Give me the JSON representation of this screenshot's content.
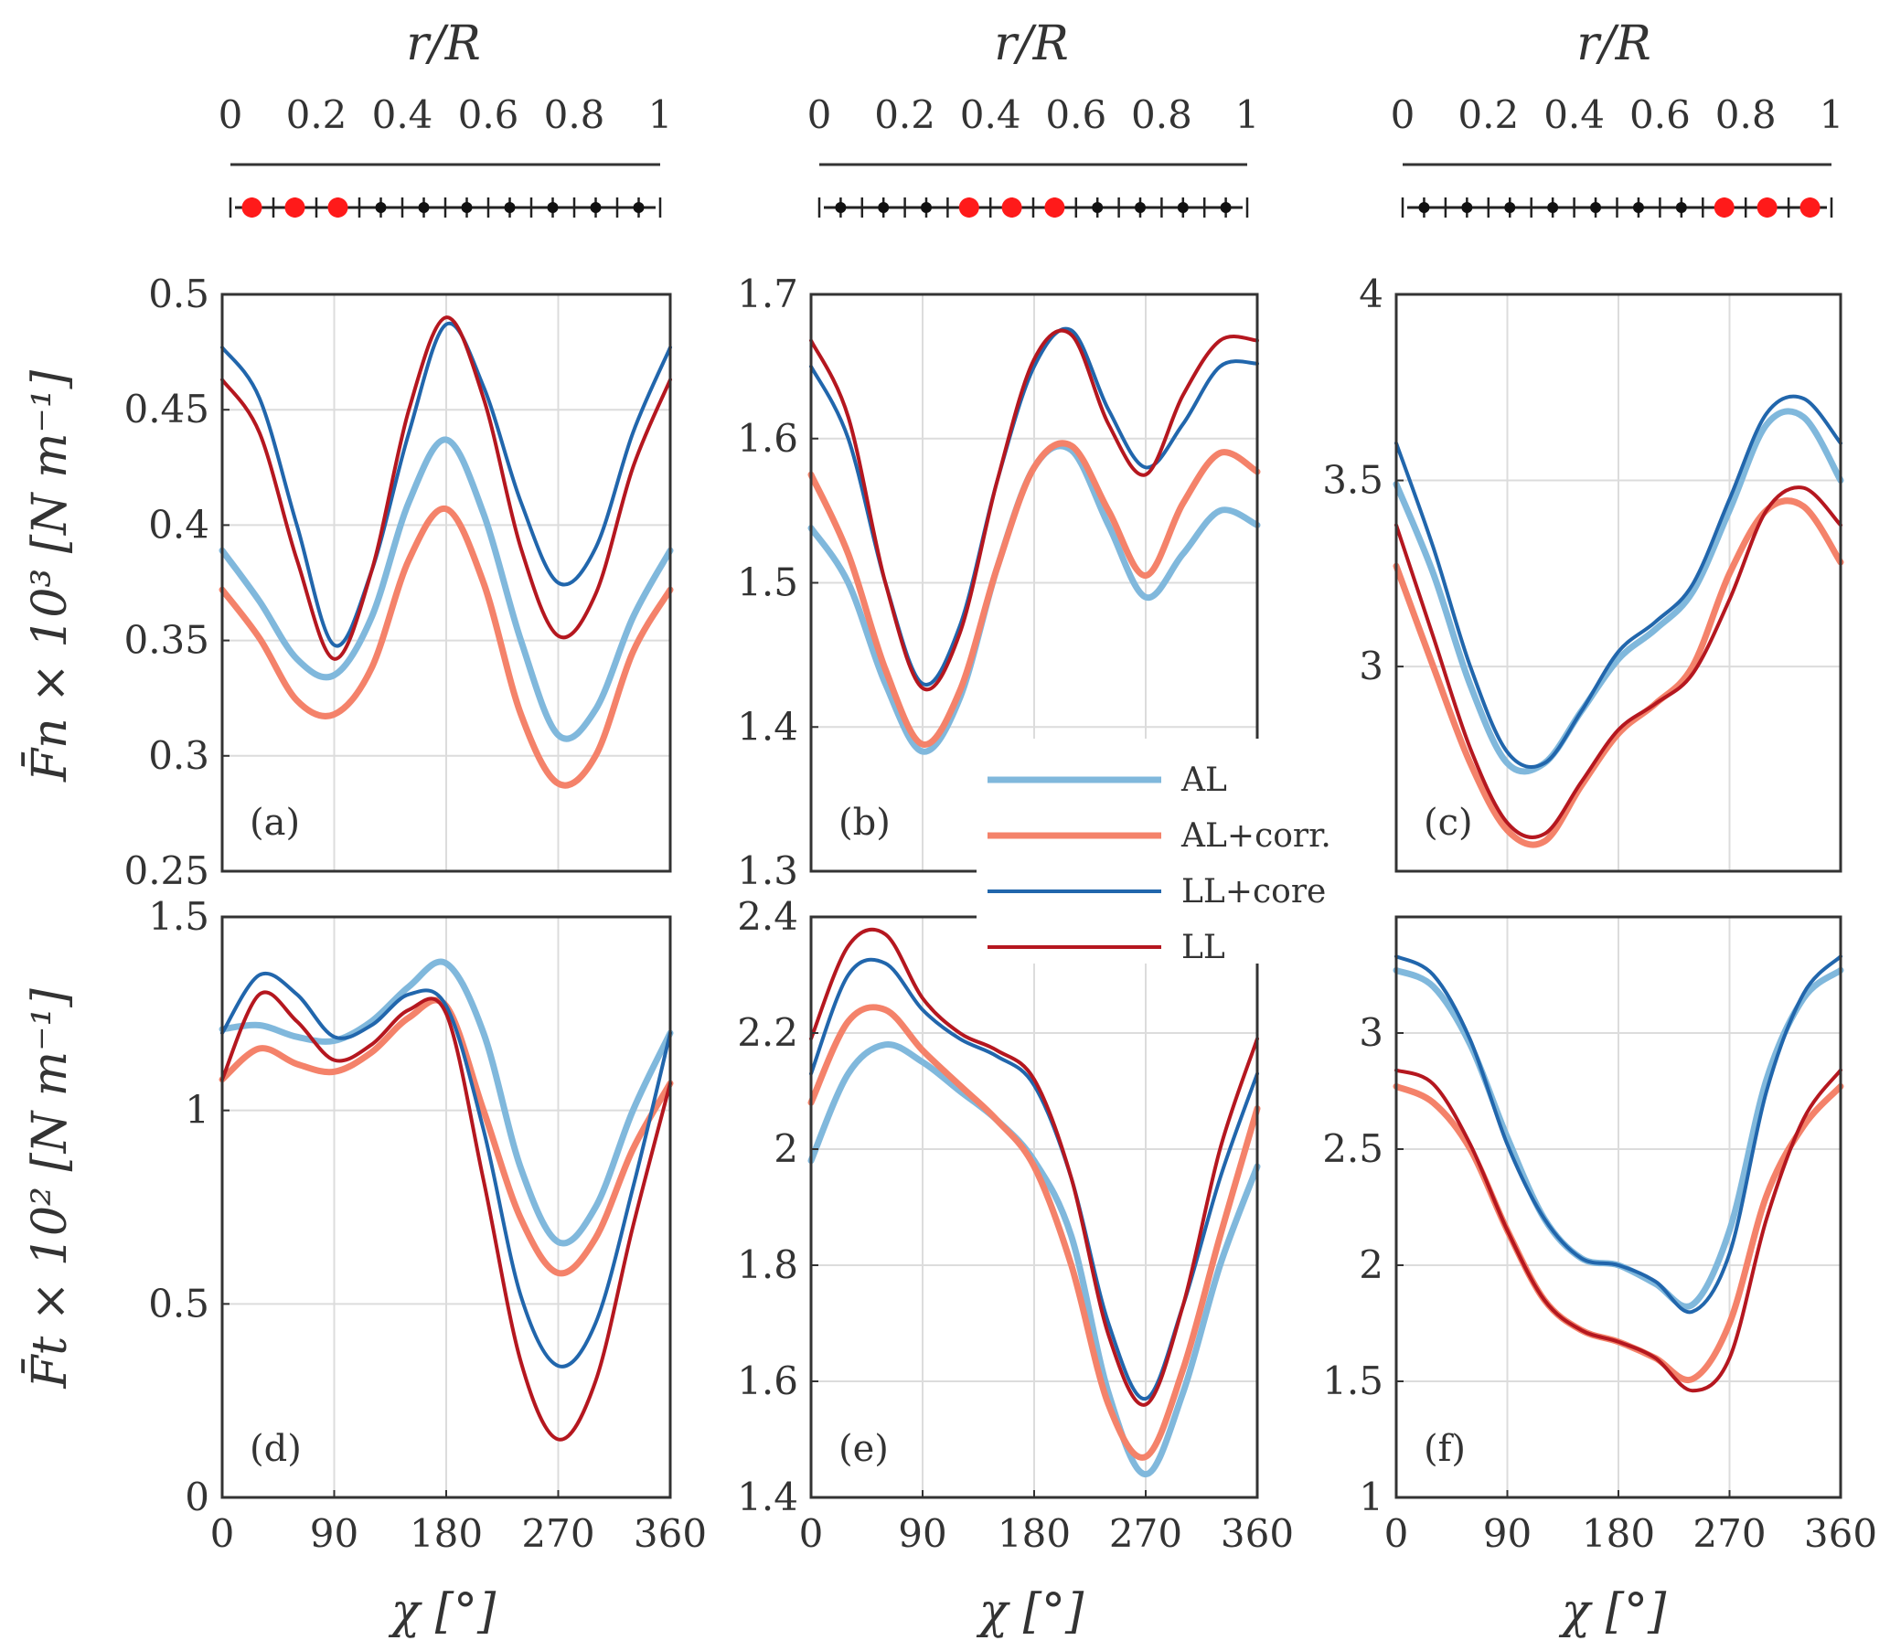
{
  "figure": {
    "top_axis_label": "r/R",
    "x_label": "χ [°]",
    "y_label_top": "F̄n × 10³ [N m⁻¹]",
    "y_label_bottom": "F̄t × 10² [N m⁻¹]"
  },
  "legend": [
    {
      "label": "AL",
      "color": "#80b8dc",
      "width": 7
    },
    {
      "label": "AL+corr.",
      "color": "#f4826a",
      "width": 7
    },
    {
      "label": "LL+core",
      "color": "#2166ac",
      "width": 4
    },
    {
      "label": "LL",
      "color": "#b5171f",
      "width": 4
    }
  ],
  "chart_data": [
    {
      "type": "line",
      "panel": "(a)",
      "xlim": [
        0,
        360
      ],
      "ylim": [
        0.25,
        0.5
      ],
      "yticks": [
        "0.25",
        "0.3",
        "0.35",
        "0.4",
        "0.45",
        "0.5"
      ],
      "xticks": [
        "0",
        "90",
        "180",
        "270",
        "360"
      ],
      "x": [
        0,
        30,
        60,
        90,
        120,
        150,
        180,
        210,
        240,
        270,
        300,
        330,
        360
      ],
      "series": [
        {
          "name": "AL",
          "values": [
            0.389,
            0.367,
            0.342,
            0.335,
            0.36,
            0.41,
            0.437,
            0.405,
            0.35,
            0.309,
            0.32,
            0.36,
            0.389
          ]
        },
        {
          "name": "AL+corr.",
          "values": [
            0.372,
            0.351,
            0.324,
            0.318,
            0.338,
            0.385,
            0.407,
            0.375,
            0.318,
            0.288,
            0.3,
            0.345,
            0.372
          ]
        },
        {
          "name": "LL+core",
          "values": [
            0.477,
            0.455,
            0.4,
            0.348,
            0.38,
            0.44,
            0.487,
            0.46,
            0.41,
            0.375,
            0.39,
            0.44,
            0.477
          ]
        },
        {
          "name": "LL",
          "values": [
            0.463,
            0.44,
            0.385,
            0.342,
            0.38,
            0.45,
            0.49,
            0.455,
            0.39,
            0.352,
            0.37,
            0.425,
            0.463
          ]
        }
      ]
    },
    {
      "type": "line",
      "panel": "(b)",
      "xlim": [
        0,
        360
      ],
      "ylim": [
        1.3,
        1.7
      ],
      "yticks": [
        "1.3",
        "1.4",
        "1.5",
        "1.6",
        "1.7"
      ],
      "xticks": [
        "0",
        "90",
        "180",
        "270",
        "360"
      ],
      "x": [
        0,
        30,
        60,
        90,
        120,
        150,
        180,
        210,
        240,
        270,
        300,
        330,
        360
      ],
      "series": [
        {
          "name": "AL",
          "values": [
            1.538,
            1.5,
            1.43,
            1.383,
            1.42,
            1.51,
            1.58,
            1.592,
            1.54,
            1.49,
            1.52,
            1.55,
            1.54
          ]
        },
        {
          "name": "AL+corr.",
          "values": [
            1.575,
            1.52,
            1.44,
            1.388,
            1.425,
            1.51,
            1.58,
            1.595,
            1.55,
            1.505,
            1.555,
            1.59,
            1.577
          ]
        },
        {
          "name": "LL+core",
          "values": [
            1.65,
            1.6,
            1.5,
            1.43,
            1.47,
            1.57,
            1.65,
            1.675,
            1.62,
            1.58,
            1.61,
            1.65,
            1.652
          ]
        },
        {
          "name": "LL",
          "values": [
            1.668,
            1.615,
            1.5,
            1.427,
            1.465,
            1.57,
            1.655,
            1.672,
            1.61,
            1.575,
            1.63,
            1.668,
            1.668
          ]
        }
      ]
    },
    {
      "type": "line",
      "panel": "(c)",
      "xlim": [
        0,
        360
      ],
      "ylim": [
        2.45,
        4.0
      ],
      "yticks": [
        "3",
        "3.5",
        "4"
      ],
      "xticks": [
        "0",
        "90",
        "180",
        "270",
        "360"
      ],
      "x": [
        0,
        30,
        60,
        90,
        120,
        150,
        180,
        210,
        240,
        270,
        300,
        330,
        360
      ],
      "series": [
        {
          "name": "AL",
          "values": [
            3.49,
            3.25,
            2.95,
            2.74,
            2.74,
            2.88,
            3.02,
            3.1,
            3.2,
            3.42,
            3.65,
            3.67,
            3.5
          ]
        },
        {
          "name": "AL+corr.",
          "values": [
            3.27,
            3.0,
            2.74,
            2.56,
            2.53,
            2.68,
            2.82,
            2.9,
            3.0,
            3.25,
            3.42,
            3.43,
            3.28
          ]
        },
        {
          "name": "LL+core",
          "values": [
            3.6,
            3.32,
            3.0,
            2.77,
            2.74,
            2.88,
            3.04,
            3.12,
            3.22,
            3.45,
            3.68,
            3.72,
            3.6
          ]
        },
        {
          "name": "LL",
          "values": [
            3.38,
            3.08,
            2.78,
            2.58,
            2.55,
            2.69,
            2.83,
            2.9,
            2.98,
            3.18,
            3.42,
            3.48,
            3.38
          ]
        }
      ]
    },
    {
      "type": "line",
      "panel": "(d)",
      "xlim": [
        0,
        360
      ],
      "ylim": [
        0,
        1.5
      ],
      "yticks": [
        "0",
        "0.5",
        "1",
        "1.5"
      ],
      "xticks": [
        "0",
        "90",
        "180",
        "270",
        "360"
      ],
      "x": [
        0,
        30,
        60,
        90,
        120,
        150,
        180,
        210,
        240,
        270,
        300,
        330,
        360
      ],
      "series": [
        {
          "name": "AL",
          "values": [
            1.21,
            1.22,
            1.19,
            1.18,
            1.23,
            1.32,
            1.38,
            1.2,
            0.85,
            0.66,
            0.75,
            1.0,
            1.2
          ]
        },
        {
          "name": "AL+corr.",
          "values": [
            1.08,
            1.16,
            1.12,
            1.1,
            1.15,
            1.24,
            1.27,
            1.0,
            0.72,
            0.58,
            0.67,
            0.9,
            1.07
          ]
        },
        {
          "name": "LL+core",
          "values": [
            1.2,
            1.35,
            1.3,
            1.19,
            1.22,
            1.3,
            1.27,
            0.95,
            0.52,
            0.34,
            0.45,
            0.8,
            1.2
          ]
        },
        {
          "name": "LL",
          "values": [
            1.08,
            1.3,
            1.23,
            1.13,
            1.17,
            1.26,
            1.25,
            0.82,
            0.35,
            0.15,
            0.3,
            0.7,
            1.07
          ]
        }
      ]
    },
    {
      "type": "line",
      "panel": "(e)",
      "xlim": [
        0,
        360
      ],
      "ylim": [
        1.4,
        2.4
      ],
      "yticks": [
        "1.4",
        "1.6",
        "1.8",
        "2",
        "2.2",
        "2.4"
      ],
      "xticks": [
        "0",
        "90",
        "180",
        "270",
        "360"
      ],
      "x": [
        0,
        30,
        60,
        90,
        120,
        150,
        180,
        210,
        240,
        270,
        300,
        330,
        360
      ],
      "series": [
        {
          "name": "AL",
          "values": [
            1.98,
            2.13,
            2.18,
            2.15,
            2.1,
            2.05,
            1.98,
            1.85,
            1.58,
            1.44,
            1.58,
            1.8,
            1.97
          ]
        },
        {
          "name": "AL+corr.",
          "values": [
            2.08,
            2.22,
            2.24,
            2.17,
            2.11,
            2.05,
            1.97,
            1.8,
            1.56,
            1.47,
            1.62,
            1.85,
            2.07
          ]
        },
        {
          "name": "LL+core",
          "values": [
            2.13,
            2.3,
            2.32,
            2.24,
            2.19,
            2.16,
            2.11,
            1.95,
            1.7,
            1.57,
            1.73,
            1.95,
            2.13
          ]
        },
        {
          "name": "LL",
          "values": [
            2.19,
            2.35,
            2.37,
            2.26,
            2.2,
            2.17,
            2.12,
            1.95,
            1.68,
            1.56,
            1.73,
            2.0,
            2.19
          ]
        }
      ]
    },
    {
      "type": "line",
      "panel": "(f)",
      "xlim": [
        0,
        360
      ],
      "ylim": [
        1,
        3.5
      ],
      "yticks": [
        "1",
        "1.5",
        "2",
        "2.5",
        "3"
      ],
      "xticks": [
        "0",
        "90",
        "180",
        "270",
        "360"
      ],
      "x": [
        0,
        30,
        60,
        90,
        120,
        150,
        180,
        210,
        240,
        270,
        300,
        330,
        360
      ],
      "series": [
        {
          "name": "AL",
          "values": [
            3.27,
            3.2,
            2.95,
            2.55,
            2.2,
            2.03,
            2.0,
            1.92,
            1.83,
            2.15,
            2.8,
            3.15,
            3.27
          ]
        },
        {
          "name": "AL+corr.",
          "values": [
            2.77,
            2.7,
            2.5,
            2.15,
            1.85,
            1.72,
            1.67,
            1.6,
            1.51,
            1.75,
            2.3,
            2.6,
            2.77
          ]
        },
        {
          "name": "LL+core",
          "values": [
            3.33,
            3.25,
            2.97,
            2.52,
            2.2,
            2.03,
            2.0,
            1.93,
            1.8,
            2.05,
            2.75,
            3.17,
            3.33
          ]
        },
        {
          "name": "LL",
          "values": [
            2.84,
            2.78,
            2.52,
            2.15,
            1.85,
            1.72,
            1.67,
            1.6,
            1.46,
            1.6,
            2.2,
            2.63,
            2.84
          ]
        }
      ]
    }
  ],
  "blade_markers": [
    {
      "panel": "top-left",
      "ticks": [
        "0",
        "0.2",
        "0.4",
        "0.6",
        "0.8",
        "1"
      ],
      "points": [
        0.05,
        0.15,
        0.25,
        0.35,
        0.45,
        0.55,
        0.65,
        0.75,
        0.85,
        0.95
      ],
      "highlight": [
        0,
        1,
        2
      ]
    },
    {
      "panel": "top-middle",
      "ticks": [
        "0",
        "0.2",
        "0.4",
        "0.6",
        "0.8",
        "1"
      ],
      "points": [
        0.05,
        0.15,
        0.25,
        0.35,
        0.45,
        0.55,
        0.65,
        0.75,
        0.85,
        0.95
      ],
      "highlight": [
        3,
        4,
        5
      ]
    },
    {
      "panel": "top-right",
      "ticks": [
        "0",
        "0.2",
        "0.4",
        "0.6",
        "0.8",
        "1"
      ],
      "points": [
        0.05,
        0.15,
        0.25,
        0.35,
        0.45,
        0.55,
        0.65,
        0.75,
        0.85,
        0.95
      ],
      "highlight": [
        7,
        8,
        9
      ]
    }
  ]
}
